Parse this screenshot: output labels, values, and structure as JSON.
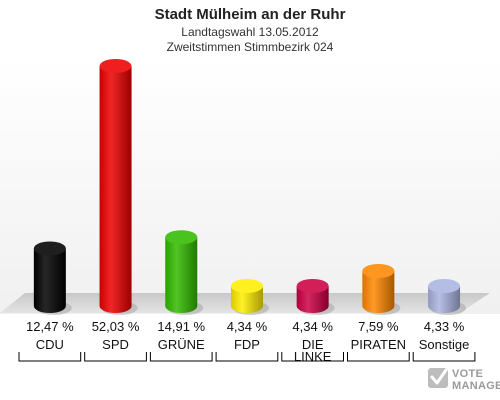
{
  "chart_data": {
    "type": "bar",
    "title": "Stadt Mülheim an der Ruhr",
    "subtitle_lines": [
      "Landtagswahl 13.05.2012",
      "Zweitstimmen Stimmbezirk 024"
    ],
    "categories": [
      "CDU",
      "SPD",
      "GRÜNE",
      "FDP",
      "DIE LINKE",
      "PIRATEN",
      "Sonstige"
    ],
    "category_lines": [
      [
        "CDU"
      ],
      [
        "SPD"
      ],
      [
        "GRÜNE"
      ],
      [
        "FDP"
      ],
      [
        "DIE",
        "LINKE"
      ],
      [
        "PIRATEN"
      ],
      [
        "Sonstige"
      ]
    ],
    "values": [
      12.47,
      52.03,
      14.91,
      4.34,
      4.34,
      7.59,
      4.33
    ],
    "value_labels": [
      "12,47 %",
      "52,03 %",
      "14,91 %",
      "4,34 %",
      "4,34 %",
      "7,59 %",
      "4,33 %"
    ],
    "colors": [
      "#000000",
      "#ee0000",
      "#33bb00",
      "#ffee00",
      "#cc0044",
      "#ff8800",
      "#aab4e0"
    ],
    "ylim": [
      0,
      52.03
    ]
  },
  "brand": {
    "text": "VOTE MANAGER",
    "line1": "VOTE",
    "line2": "MANAGER"
  }
}
